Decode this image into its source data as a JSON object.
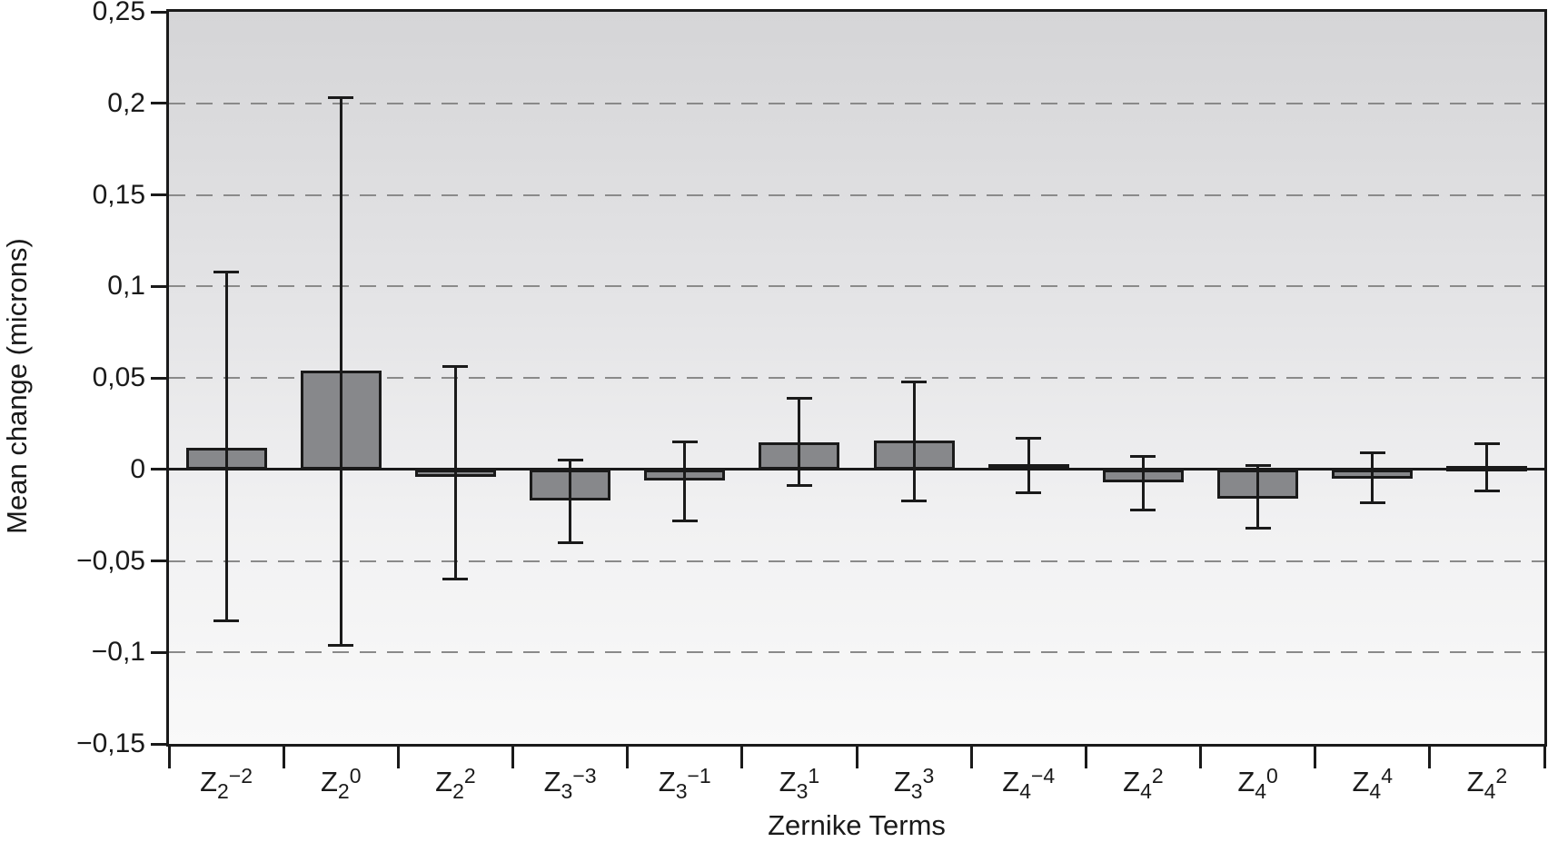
{
  "chart_data": {
    "type": "bar",
    "title": "",
    "xlabel": "Zernike Terms",
    "ylabel": "Mean change (microns)",
    "ylim": [
      -0.15,
      0.25
    ],
    "grid": "horizontal-dashed",
    "legend": "none",
    "yticks": [
      {
        "value": 0.25,
        "label": "0,25"
      },
      {
        "value": 0.2,
        "label": "0,2"
      },
      {
        "value": 0.15,
        "label": "0,15"
      },
      {
        "value": 0.1,
        "label": "0,1"
      },
      {
        "value": 0.05,
        "label": "0,05"
      },
      {
        "value": 0,
        "label": "0"
      },
      {
        "value": -0.05,
        "label": "−0,05"
      },
      {
        "value": -0.1,
        "label": "−0,1"
      },
      {
        "value": -0.15,
        "label": "−0,15"
      }
    ],
    "gridline_values": [
      0.2,
      0.15,
      0.1,
      0.05,
      -0.05,
      -0.1
    ],
    "categories": [
      {
        "base": "Z",
        "sub": "2",
        "sup": "−2"
      },
      {
        "base": "Z",
        "sub": "2",
        "sup": "0"
      },
      {
        "base": "Z",
        "sub": "2",
        "sup": "2"
      },
      {
        "base": "Z",
        "sub": "3",
        "sup": "−3"
      },
      {
        "base": "Z",
        "sub": "3",
        "sup": "−1"
      },
      {
        "base": "Z",
        "sub": "3",
        "sup": "1"
      },
      {
        "base": "Z",
        "sub": "3",
        "sup": "3"
      },
      {
        "base": "Z",
        "sub": "4",
        "sup": "−4"
      },
      {
        "base": "Z",
        "sub": "4",
        "sup": "2"
      },
      {
        "base": "Z",
        "sub": "4",
        "sup": "0"
      },
      {
        "base": "Z",
        "sub": "4",
        "sup": "4"
      },
      {
        "base": "Z",
        "sub": "4",
        "sup": "2"
      }
    ],
    "values": [
      0.012,
      0.054,
      -0.004,
      -0.017,
      -0.006,
      0.015,
      0.016,
      0.003,
      -0.007,
      -0.016,
      -0.005,
      0.002
    ],
    "error_low": [
      -0.083,
      -0.096,
      -0.06,
      -0.04,
      -0.028,
      -0.009,
      -0.017,
      -0.013,
      -0.022,
      -0.032,
      -0.018,
      -0.012
    ],
    "error_high": [
      0.108,
      0.203,
      0.056,
      0.005,
      0.015,
      0.039,
      0.048,
      0.017,
      0.007,
      0.002,
      0.009,
      0.014
    ],
    "colors": {
      "bar_fill": "#87888b",
      "bar_border": "#1a1a1a",
      "error_bar": "#1a1a1a",
      "axis": "#1a1a1a",
      "gridline": "#8a8a8a",
      "plot_bg_top": "#d5d5d7",
      "plot_bg_bottom": "#f9f9f9",
      "page_bg": "#ffffff",
      "text": "#1a1a1a"
    }
  }
}
